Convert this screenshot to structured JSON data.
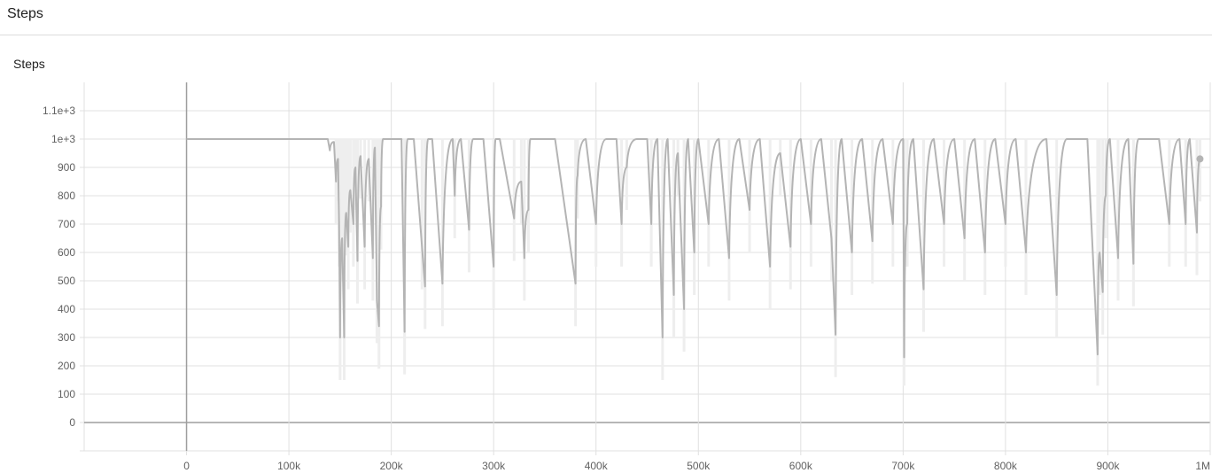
{
  "header": {
    "title": "Steps"
  },
  "card": {
    "title": "Steps"
  },
  "colors": {
    "line": "#b4b4b4",
    "raw": "#eeeeee",
    "grid": "#e0e0e0",
    "zero_axis": "#9e9e9e"
  },
  "chart_data": {
    "type": "line",
    "title": "Steps",
    "xlabel": "",
    "ylabel": "",
    "xlim": [
      -100000,
      1000000
    ],
    "ylim": [
      -100,
      1200
    ],
    "grid": true,
    "x_ticks": [
      {
        "value": 0,
        "label": "0"
      },
      {
        "value": 100000,
        "label": "100k"
      },
      {
        "value": 200000,
        "label": "200k"
      },
      {
        "value": 300000,
        "label": "300k"
      },
      {
        "value": 400000,
        "label": "400k"
      },
      {
        "value": 500000,
        "label": "500k"
      },
      {
        "value": 600000,
        "label": "600k"
      },
      {
        "value": 700000,
        "label": "700k"
      },
      {
        "value": 800000,
        "label": "800k"
      },
      {
        "value": 900000,
        "label": "900k"
      },
      {
        "value": 1000000,
        "label": "1M"
      }
    ],
    "y_ticks": [
      {
        "value": 0,
        "label": "0"
      },
      {
        "value": 100,
        "label": "100"
      },
      {
        "value": 200,
        "label": "200"
      },
      {
        "value": 300,
        "label": "300"
      },
      {
        "value": 400,
        "label": "400"
      },
      {
        "value": 500,
        "label": "500"
      },
      {
        "value": 600,
        "label": "600"
      },
      {
        "value": 700,
        "label": "700"
      },
      {
        "value": 800,
        "label": "800"
      },
      {
        "value": 900,
        "label": "900"
      },
      {
        "value": 1000,
        "label": "1e+3"
      },
      {
        "value": 1100,
        "label": "1.1e+3"
      }
    ],
    "series": [
      {
        "x": [
          0,
          138000,
          140000,
          144000,
          146000,
          148000,
          149000,
          150000,
          152000,
          154000,
          156000,
          158000,
          160000,
          163000,
          165000,
          167000,
          170000,
          174000,
          178000,
          182000,
          184000,
          186000,
          188000,
          190000,
          192000,
          198000,
          210000,
          213000,
          216000,
          222000,
          230000,
          233000,
          236000,
          240000,
          250000,
          260000,
          262000,
          268000,
          276000,
          280000,
          290000,
          300000,
          302000,
          306000,
          320000,
          327000,
          330000,
          334000,
          336000,
          340000,
          350000,
          360000,
          380000,
          382000,
          390000,
          400000,
          410000,
          420000,
          425000,
          430000,
          440000,
          450000,
          454000,
          460000,
          465000,
          470000,
          476000,
          480000,
          486000,
          490000,
          496000,
          500000,
          510000,
          520000,
          530000,
          540000,
          550000,
          560000,
          570000,
          580000,
          590000,
          600000,
          610000,
          620000,
          630000,
          634000,
          640000,
          650000,
          660000,
          670000,
          680000,
          690000,
          700000,
          701000,
          704000,
          710000,
          720000,
          730000,
          740000,
          750000,
          760000,
          770000,
          780000,
          790000,
          800000,
          810000,
          820000,
          840000,
          850000,
          860000,
          880000,
          890000,
          892000,
          895000,
          898000,
          902000,
          910000,
          920000,
          925000,
          930000,
          940000,
          950000,
          960000,
          970000,
          976000,
          980000,
          987000,
          990000
        ],
        "values": [
          1000,
          1000,
          960,
          990,
          850,
          930,
          700,
          300,
          650,
          300,
          740,
          620,
          820,
          700,
          900,
          570,
          940,
          620,
          930,
          580,
          970,
          430,
          340,
          760,
          1000,
          1000,
          1000,
          320,
          1000,
          1000,
          620,
          480,
          1000,
          1000,
          490,
          1000,
          800,
          1000,
          680,
          1000,
          1000,
          550,
          1000,
          1000,
          720,
          850,
          580,
          750,
          1000,
          1000,
          1000,
          1000,
          490,
          870,
          1000,
          700,
          1000,
          1000,
          700,
          900,
          1000,
          1000,
          700,
          1000,
          300,
          1000,
          450,
          950,
          400,
          1000,
          600,
          1000,
          700,
          1000,
          580,
          1000,
          750,
          1000,
          550,
          950,
          620,
          1000,
          700,
          1000,
          650,
          310,
          1000,
          600,
          1000,
          640,
          1000,
          700,
          1000,
          230,
          700,
          1000,
          470,
          1000,
          700,
          1000,
          650,
          1000,
          600,
          1000,
          700,
          1000,
          600,
          1000,
          450,
          1000,
          1000,
          240,
          600,
          460,
          800,
          1000,
          580,
          1000,
          560,
          1000,
          1000,
          1000,
          700,
          1000,
          700,
          1000,
          670,
          930
        ]
      }
    ]
  }
}
